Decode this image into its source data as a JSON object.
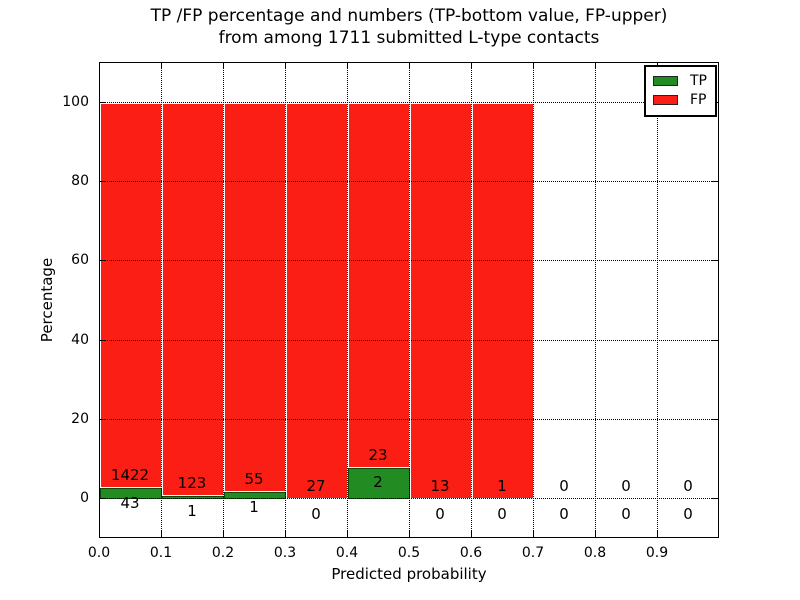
{
  "chart_data": {
    "type": "bar",
    "stacked": true,
    "title": "TP /FP percentage and numbers (TP-bottom value, FP-upper)\nfrom among 1711 submitted L-type contacts",
    "title_lines": [
      "TP /FP percentage and numbers (TP-bottom value, FP-upper)",
      "from among 1711 submitted L-type contacts"
    ],
    "xlabel": "Predicted probability",
    "ylabel": "Percentage",
    "xlim": [
      0.0,
      1.0
    ],
    "ylim": [
      -10,
      110
    ],
    "grid": "dotted",
    "legend_position": "upper right",
    "bin_width": 0.1,
    "bin_starts": [
      0.0,
      0.1,
      0.2,
      0.3,
      0.4,
      0.5,
      0.6,
      0.7,
      0.8,
      0.9
    ],
    "xtick_labels": [
      "0.0",
      "0.1",
      "0.2",
      "0.3",
      "0.4",
      "0.5",
      "0.6",
      "0.7",
      "0.8",
      "0.9"
    ],
    "ytick_values": [
      0,
      20,
      40,
      60,
      80,
      100
    ],
    "series": [
      {
        "name": "TP",
        "color": "#228B22",
        "counts": [
          43,
          1,
          1,
          0,
          2,
          0,
          0,
          0,
          0,
          0
        ]
      },
      {
        "name": "FP",
        "color": "#FA1E14",
        "counts": [
          1422,
          123,
          55,
          27,
          23,
          13,
          1,
          0,
          0,
          0
        ]
      }
    ],
    "bars_display": "percentage of bin total, TP bottom segment, FP upper segment; bins 0.7-1.0 empty",
    "total_submitted": 1711
  }
}
